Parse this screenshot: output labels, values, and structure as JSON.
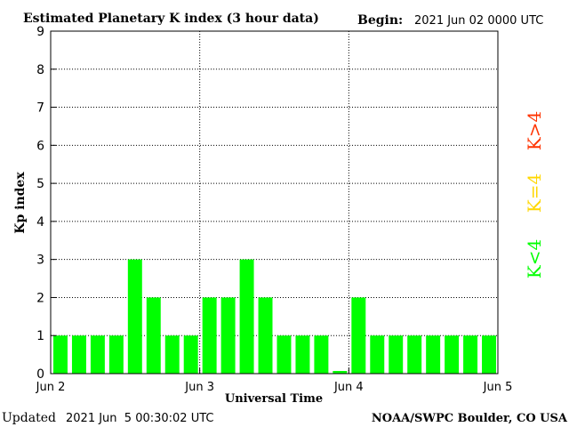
{
  "header": {
    "title": "Estimated Planetary K index (3 hour data)",
    "begin_label": "Begin:",
    "begin_value": "2021 Jun 02 0000 UTC"
  },
  "footer": {
    "updated_label": "Updated",
    "updated_value": "2021 Jun  5 00:30:02 UTC",
    "credit": "NOAA/SWPC Boulder, CO USA"
  },
  "legend": {
    "items": [
      {
        "label": "K<4",
        "color": "#00ff00"
      },
      {
        "label": "K=4",
        "color": "#ffd700"
      },
      {
        "label": "K>4",
        "color": "#ff3300"
      }
    ]
  },
  "colors": {
    "bar_low": "#00ff00",
    "bar_eq4": "#ffd700",
    "bar_high": "#ff3300",
    "axis": "#000000",
    "grid": "#000000"
  },
  "chart_data": {
    "type": "bar",
    "title": "Estimated Planetary K index (3 hour data)",
    "xlabel": "Universal Time",
    "ylabel": "Kp index",
    "ylim": [
      0,
      9
    ],
    "yticks": [
      "0",
      "1",
      "2",
      "3",
      "4",
      "5",
      "6",
      "7",
      "8",
      "9"
    ],
    "xtick_labels": [
      "Jun 2",
      "Jun 3",
      "Jun 4",
      "Jun 5"
    ],
    "grid": true,
    "legend_position": "right",
    "categories": [
      "Jun 2 00",
      "Jun 2 03",
      "Jun 2 06",
      "Jun 2 09",
      "Jun 2 12",
      "Jun 2 15",
      "Jun 2 18",
      "Jun 2 21",
      "Jun 3 00",
      "Jun 3 03",
      "Jun 3 06",
      "Jun 3 09",
      "Jun 3 12",
      "Jun 3 15",
      "Jun 3 18",
      "Jun 3 21",
      "Jun 4 00",
      "Jun 4 03",
      "Jun 4 06",
      "Jun 4 09",
      "Jun 4 12",
      "Jun 4 15",
      "Jun 4 18",
      "Jun 4 21"
    ],
    "values": [
      1,
      1,
      1,
      1,
      3,
      2,
      1,
      1,
      2,
      2,
      3,
      2,
      1,
      1,
      1,
      0.07,
      2,
      1,
      1,
      1,
      1,
      1,
      1,
      1
    ]
  }
}
